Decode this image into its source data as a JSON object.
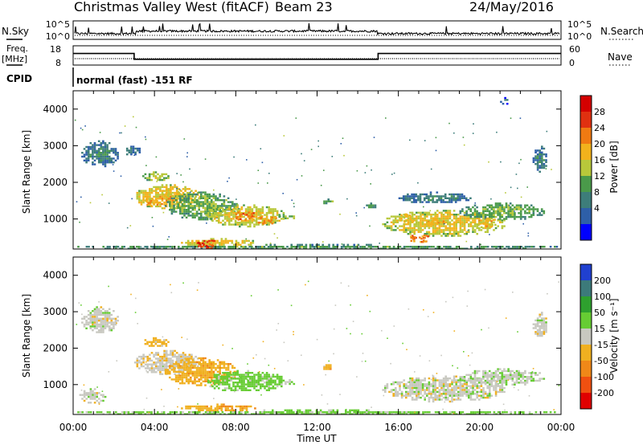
{
  "header": {
    "title": "Christmas Valley West (fitACF)",
    "beam": "Beam 23",
    "date": "24/May/2016"
  },
  "status_panels": {
    "nsky_label": "N.Sky",
    "nsky_ticks": [
      "10^5",
      "10^0"
    ],
    "nsearch_label": "N.Search",
    "nsearch_ticks": [
      "10^5",
      "10^0"
    ],
    "freq_label": "Freq.",
    "freq_unit": "[MHz]",
    "freq_ticks": [
      "18",
      "8"
    ],
    "nave_label": "Nave",
    "nave_ticks": [
      "60",
      "0"
    ],
    "cpid_label": "CPID",
    "cpid_text": "normal (fast) -151 RF",
    "freq_series": {
      "hours": [
        0,
        3.0,
        3.0,
        15.0,
        15.0,
        24
      ],
      "mhz": [
        14,
        14,
        11,
        11,
        14,
        14
      ]
    }
  },
  "chart_data": [
    {
      "type": "heatmap",
      "name": "power-panel",
      "ylabel": "Slant Range [km]",
      "xlim": [
        0,
        24
      ],
      "ylim": [
        180,
        4500
      ],
      "yticks": [
        1000,
        2000,
        3000,
        4000
      ],
      "colorbar": {
        "label": "Power [dB]",
        "ticks": [
          "28",
          "24",
          "20",
          "16",
          "12",
          "8",
          "4"
        ],
        "levels": [
          0,
          4,
          8,
          12,
          16,
          20,
          24,
          28,
          32
        ],
        "colors": [
          "#0000ff",
          "#2e5fa8",
          "#3d7d7a",
          "#4a9a4a",
          "#b8c83a",
          "#f2b21c",
          "#f07a12",
          "#e03010",
          "#d40000"
        ]
      },
      "regions": [
        {
          "t0": 0.4,
          "t1": 2.2,
          "r0": 2450,
          "r1": 3150,
          "v": 7
        },
        {
          "t0": 2.4,
          "t1": 3.3,
          "r0": 2750,
          "r1": 3000,
          "v": 6
        },
        {
          "t0": 3.4,
          "t1": 4.7,
          "r0": 2050,
          "r1": 2300,
          "v": 14
        },
        {
          "t0": 3.0,
          "t1": 6.2,
          "r0": 1300,
          "r1": 1950,
          "v": 18
        },
        {
          "t0": 4.5,
          "t1": 8.0,
          "r0": 1000,
          "r1": 1750,
          "v": 12
        },
        {
          "t0": 6.5,
          "t1": 10.4,
          "r0": 820,
          "r1": 1400,
          "v": 17
        },
        {
          "t0": 5.2,
          "t1": 9.0,
          "r0": 280,
          "r1": 480,
          "v": 18
        },
        {
          "t0": 10.3,
          "t1": 10.9,
          "r0": 1000,
          "r1": 1150,
          "v": 13
        },
        {
          "t0": 12.2,
          "t1": 12.8,
          "r0": 1450,
          "r1": 1560,
          "v": 12
        },
        {
          "t0": 14.3,
          "t1": 14.9,
          "r0": 1300,
          "r1": 1450,
          "v": 9
        },
        {
          "t0": 15.2,
          "t1": 21.2,
          "r0": 560,
          "r1": 1250,
          "v": 17
        },
        {
          "t0": 16.0,
          "t1": 19.5,
          "r0": 1450,
          "r1": 1750,
          "v": 7
        },
        {
          "t0": 19.0,
          "t1": 23.2,
          "r0": 1000,
          "r1": 1450,
          "v": 12
        },
        {
          "t0": 0.0,
          "t1": 24.0,
          "r0": 180,
          "r1": 320,
          "v": 10
        },
        {
          "t0": 21.0,
          "t1": 21.4,
          "r0": 4150,
          "r1": 4330,
          "v": 6
        },
        {
          "t0": 22.6,
          "t1": 23.3,
          "r0": 2300,
          "r1": 3000,
          "v": 7
        }
      ],
      "hotspots": [
        {
          "t": 3.9,
          "r": 1500,
          "v": 22
        },
        {
          "t": 4.8,
          "r": 1700,
          "v": 20
        },
        {
          "t": 8.4,
          "r": 1100,
          "v": 26
        },
        {
          "t": 9.5,
          "r": 1000,
          "v": 24
        },
        {
          "t": 6.5,
          "r": 330,
          "v": 30
        },
        {
          "t": 17.8,
          "r": 950,
          "v": 22
        },
        {
          "t": 17.0,
          "r": 480,
          "v": 26
        },
        {
          "t": 20.3,
          "r": 900,
          "v": 22
        },
        {
          "t": 16.3,
          "r": 1050,
          "v": 20
        }
      ]
    },
    {
      "type": "heatmap",
      "name": "velocity-panel",
      "ylabel": "Slant Range [km]",
      "xlabel": "Time UT",
      "xlim": [
        0,
        24
      ],
      "ylim": [
        180,
        4500
      ],
      "xticks": [
        "00:00",
        "04:00",
        "08:00",
        "12:00",
        "16:00",
        "20:00",
        "00:00"
      ],
      "yticks": [
        1000,
        2000,
        3000,
        4000
      ],
      "colorbar": {
        "label": "Velocity [m s⁻¹]",
        "ticks": [
          "200",
          "100",
          "50",
          "15",
          "-15",
          "-50",
          "-100",
          "-200"
        ],
        "colors": [
          "#2040d0",
          "#3c7a7a",
          "#2ea02e",
          "#66cc33",
          "#c8c8c0",
          "#f0b020",
          "#f08818",
          "#f05010",
          "#e00000"
        ]
      },
      "regions": [
        {
          "t0": 0.4,
          "t1": 2.2,
          "r0": 2450,
          "r1": 3150,
          "v": 0
        },
        {
          "t0": 3.4,
          "t1": 4.7,
          "r0": 2050,
          "r1": 2300,
          "v": -30
        },
        {
          "t0": 3.0,
          "t1": 6.2,
          "r0": 1300,
          "r1": 1950,
          "v": -5
        },
        {
          "t0": 4.5,
          "t1": 8.0,
          "r0": 1000,
          "r1": 1750,
          "v": -35
        },
        {
          "t0": 6.5,
          "t1": 10.4,
          "r0": 820,
          "r1": 1400,
          "v": 30
        },
        {
          "t0": 5.2,
          "t1": 9.0,
          "r0": 280,
          "r1": 480,
          "v": -40
        },
        {
          "t0": 10.3,
          "t1": 10.9,
          "r0": 1000,
          "r1": 1150,
          "v": 5
        },
        {
          "t0": 12.2,
          "t1": 12.8,
          "r0": 1450,
          "r1": 1560,
          "v": -40
        },
        {
          "t0": 15.2,
          "t1": 21.2,
          "r0": 560,
          "r1": 1250,
          "v": 0
        },
        {
          "t0": 19.0,
          "t1": 23.2,
          "r0": 1000,
          "r1": 1450,
          "v": 5
        },
        {
          "t0": 0.0,
          "t1": 24.0,
          "r0": 180,
          "r1": 320,
          "v": 30
        },
        {
          "t0": 22.6,
          "t1": 23.3,
          "r0": 2300,
          "r1": 3000,
          "v": 0
        },
        {
          "t0": 0.3,
          "t1": 1.6,
          "r0": 500,
          "r1": 900,
          "v": 0
        }
      ]
    }
  ]
}
